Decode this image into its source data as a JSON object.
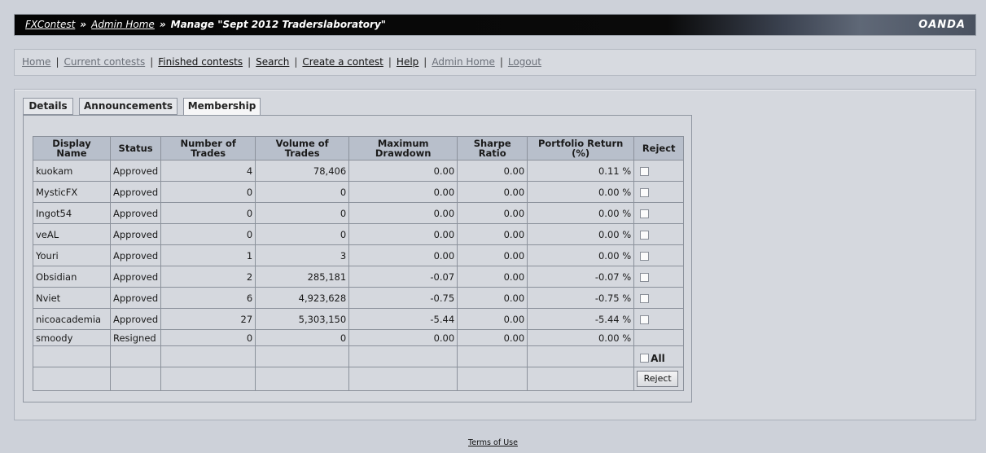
{
  "header": {
    "crumb_home": "FXContest",
    "crumb_admin": "Admin Home",
    "separator": "»",
    "current": "Manage \"Sept 2012 Traderslaboratory\"",
    "brand": "OANDA"
  },
  "nav": {
    "home": "Home",
    "current_contests": "Current contests",
    "finished_contests": "Finished contests",
    "search": "Search",
    "create_contest": "Create a contest",
    "help": "Help",
    "admin_home": "Admin Home",
    "logout": "Logout",
    "separator": "|"
  },
  "tabs": {
    "details": "Details",
    "announcements": "Announcements",
    "membership": "Membership"
  },
  "table": {
    "headers": {
      "display_name": "Display Name",
      "status": "Status",
      "num_trades": "Number of Trades",
      "volume": "Volume of Trades",
      "drawdown": "Maximum Drawdown",
      "sharpe": "Sharpe Ratio",
      "return": "Portfolio Return (%)",
      "reject": "Reject"
    },
    "rows": [
      {
        "name": "kuokam",
        "status": "Approved",
        "trades": "4",
        "volume": "78,406",
        "drawdown": "0.00",
        "sharpe": "0.00",
        "ret": "0.11 %"
      },
      {
        "name": "MysticFX",
        "status": "Approved",
        "trades": "0",
        "volume": "0",
        "drawdown": "0.00",
        "sharpe": "0.00",
        "ret": "0.00 %"
      },
      {
        "name": "Ingot54",
        "status": "Approved",
        "trades": "0",
        "volume": "0",
        "drawdown": "0.00",
        "sharpe": "0.00",
        "ret": "0.00 %"
      },
      {
        "name": "veAL",
        "status": "Approved",
        "trades": "0",
        "volume": "0",
        "drawdown": "0.00",
        "sharpe": "0.00",
        "ret": "0.00 %"
      },
      {
        "name": "Youri",
        "status": "Approved",
        "trades": "1",
        "volume": "3",
        "drawdown": "0.00",
        "sharpe": "0.00",
        "ret": "0.00 %"
      },
      {
        "name": "Obsidian",
        "status": "Approved",
        "trades": "2",
        "volume": "285,181",
        "drawdown": "-0.07",
        "sharpe": "0.00",
        "ret": "-0.07 %"
      },
      {
        "name": "Nviet",
        "status": "Approved",
        "trades": "6",
        "volume": "4,923,628",
        "drawdown": "-0.75",
        "sharpe": "0.00",
        "ret": "-0.75 %"
      },
      {
        "name": "nicoacademia",
        "status": "Approved",
        "trades": "27",
        "volume": "5,303,150",
        "drawdown": "-5.44",
        "sharpe": "0.00",
        "ret": "-5.44 %"
      },
      {
        "name": "smoody",
        "status": "Resigned",
        "trades": "0",
        "volume": "0",
        "drawdown": "0.00",
        "sharpe": "0.00",
        "ret": "0.00 %"
      }
    ],
    "all_label": "All",
    "reject_button": "Reject"
  },
  "footer": {
    "terms": "Terms of Use"
  }
}
